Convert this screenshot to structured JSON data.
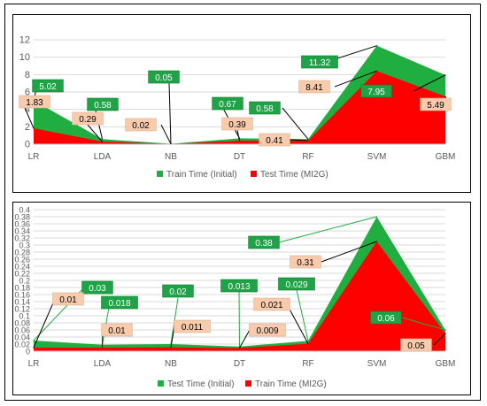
{
  "colors": {
    "train_green": "#1FAE3F",
    "test_red": "#FF0000",
    "label_green_bg": "#1FA347",
    "label_peach_bg": "#F8CBAD",
    "grid": "#D9D9D9",
    "axis_text": "#595959"
  },
  "chart_data": [
    {
      "type": "area",
      "categories": [
        "LR",
        "LDA",
        "NB",
        "DT",
        "RF",
        "SVM",
        "GBM"
      ],
      "ylim": [
        0,
        12
      ],
      "yticks": [
        0,
        2,
        4,
        6,
        8,
        10,
        12
      ],
      "grid": true,
      "legend_position": "bottom",
      "series": [
        {
          "name": "Train Time (Initial)",
          "values": [
            5.02,
            0.58,
            0.05,
            0.67,
            0.58,
            11.32,
            7.95
          ],
          "labels": [
            "5.02",
            "0.58",
            "0.05",
            "0.67",
            "0.58",
            "11.32",
            "7.95"
          ]
        },
        {
          "name": "Test Time (MI2G)",
          "values": [
            1.83,
            0.29,
            0.02,
            0.39,
            0.41,
            8.41,
            5.49
          ],
          "labels": [
            "1.83",
            "0.29",
            "0.02",
            "0.39",
            "0.41",
            "8.41",
            "5.49"
          ]
        }
      ]
    },
    {
      "type": "area",
      "categories": [
        "LR",
        "LDA",
        "NB",
        "DT",
        "RF",
        "SVM",
        "GBM"
      ],
      "ylim": [
        0,
        0.4
      ],
      "yticks": [
        "0",
        "0.02",
        "0.04",
        "0.06",
        "0.08",
        "0.1",
        "0.12",
        "0.14",
        "0.16",
        "0.18",
        "0.2",
        "0.22",
        "0.24",
        "0.26",
        "0.28",
        "0.3",
        "0.32",
        "0.34",
        "0.36",
        "0.38",
        "0.4"
      ],
      "grid": true,
      "legend_position": "bottom",
      "series": [
        {
          "name": "Test Time (Initial)",
          "values": [
            0.03,
            0.018,
            0.02,
            0.013,
            0.029,
            0.38,
            0.06
          ],
          "labels": [
            "0.03",
            "0.018",
            "0.02",
            "0.013",
            "0.029",
            "0.38",
            "0.06"
          ]
        },
        {
          "name": "Train Time (MI2G)",
          "values": [
            0.01,
            0.01,
            0.011,
            0.009,
            0.021,
            0.31,
            0.05
          ],
          "labels": [
            "0.01",
            "0.01",
            "0.011",
            "0.009",
            "0.021",
            "0.31",
            "0.05"
          ]
        }
      ]
    }
  ]
}
